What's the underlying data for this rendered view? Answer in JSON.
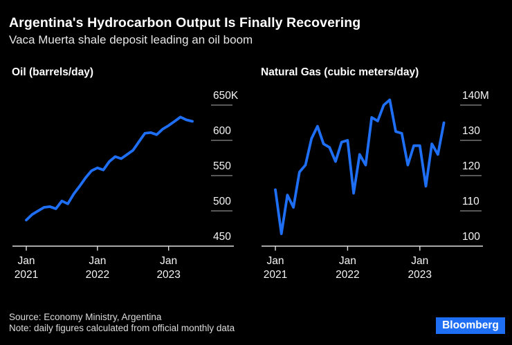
{
  "header": {
    "title": "Argentina's Hydrocarbon Output Is Finally Recovering",
    "subtitle": "Vaca Muerta shale deposit leading an oil boom"
  },
  "footer": {
    "source": "Source: Economy Ministry, Argentina",
    "note": "Note: daily figures calculated from official monthly data",
    "brand": "Bloomberg"
  },
  "colors": {
    "background": "#000000",
    "line_blue": "#1f6ff5",
    "brand_blue": "#1f6ff5",
    "title_text": "#ffffff",
    "subtitle_text": "#e6e6e6",
    "axis_labels": "#f5f5f5",
    "gridline": "#8c8c8c",
    "axis_line": "#e0e0e0"
  },
  "chart_data": [
    {
      "type": "line",
      "title": "Oil (barrels/day)",
      "series_name": "Oil output",
      "unit": "thousand barrels per day",
      "legend": "none",
      "grid": "short right-side y ticks",
      "x": [
        "Jan 2021",
        "Feb 2021",
        "Mar 2021",
        "Apr 2021",
        "May 2021",
        "Jun 2021",
        "Jul 2021",
        "Aug 2021",
        "Sep 2021",
        "Oct 2021",
        "Nov 2021",
        "Dec 2021",
        "Jan 2022",
        "Feb 2022",
        "Mar 2022",
        "Apr 2022",
        "May 2022",
        "Jun 2022",
        "Jul 2022",
        "Aug 2022",
        "Sep 2022",
        "Oct 2022",
        "Nov 2022",
        "Dec 2022",
        "Jan 2023",
        "Feb 2023",
        "Mar 2023",
        "Apr 2023",
        "May 2023"
      ],
      "values": [
        487,
        495,
        500,
        505,
        506,
        503,
        514,
        510,
        524,
        535,
        547,
        557,
        561,
        558,
        570,
        577,
        574,
        580,
        586,
        598,
        610,
        611,
        608,
        616,
        621,
        627,
        633,
        629,
        627
      ],
      "ylim": [
        450,
        650
      ],
      "yticks": [
        {
          "value": 650,
          "label": "650K"
        },
        {
          "value": 600,
          "label": "600"
        },
        {
          "value": 550,
          "label": "550"
        },
        {
          "value": 500,
          "label": "500"
        },
        {
          "value": 450,
          "label": "450"
        }
      ],
      "xticks": [
        {
          "index": 0,
          "line1": "Jan",
          "line2": "2021"
        },
        {
          "index": 12,
          "line1": "Jan",
          "line2": "2022"
        },
        {
          "index": 24,
          "line1": "Jan",
          "line2": "2023"
        }
      ]
    },
    {
      "type": "line",
      "title": "Natural Gas (cubic meters/day)",
      "series_name": "Natural gas output",
      "unit": "million cubic meters per day",
      "legend": "none",
      "grid": "short right-side y ticks",
      "x": [
        "Jan 2021",
        "Feb 2021",
        "Mar 2021",
        "Apr 2021",
        "May 2021",
        "Jun 2021",
        "Jul 2021",
        "Aug 2021",
        "Sep 2021",
        "Oct 2021",
        "Nov 2021",
        "Dec 2021",
        "Jan 2022",
        "Feb 2022",
        "Mar 2022",
        "Apr 2022",
        "May 2022",
        "Jun 2022",
        "Jul 2022",
        "Aug 2022",
        "Sep 2022",
        "Oct 2022",
        "Nov 2022",
        "Dec 2022",
        "Jan 2023",
        "Feb 2023",
        "Mar 2023",
        "Apr 2023",
        "May 2023"
      ],
      "values": [
        116,
        103.5,
        114.5,
        111,
        121,
        123,
        130.5,
        134,
        129,
        128,
        124,
        129.5,
        130,
        115,
        126,
        123,
        136.5,
        135.5,
        140,
        141.5,
        132.5,
        132,
        123,
        128.5,
        128.5,
        117,
        129,
        126,
        135
      ],
      "ylim": [
        100,
        140
      ],
      "yticks": [
        {
          "value": 140,
          "label": "140M"
        },
        {
          "value": 130,
          "label": "130"
        },
        {
          "value": 120,
          "label": "120"
        },
        {
          "value": 110,
          "label": "110"
        },
        {
          "value": 100,
          "label": "100"
        }
      ],
      "xticks": [
        {
          "index": 0,
          "line1": "Jan",
          "line2": "2021"
        },
        {
          "index": 12,
          "line1": "Jan",
          "line2": "2022"
        },
        {
          "index": 24,
          "line1": "Jan",
          "line2": "2023"
        }
      ]
    }
  ]
}
